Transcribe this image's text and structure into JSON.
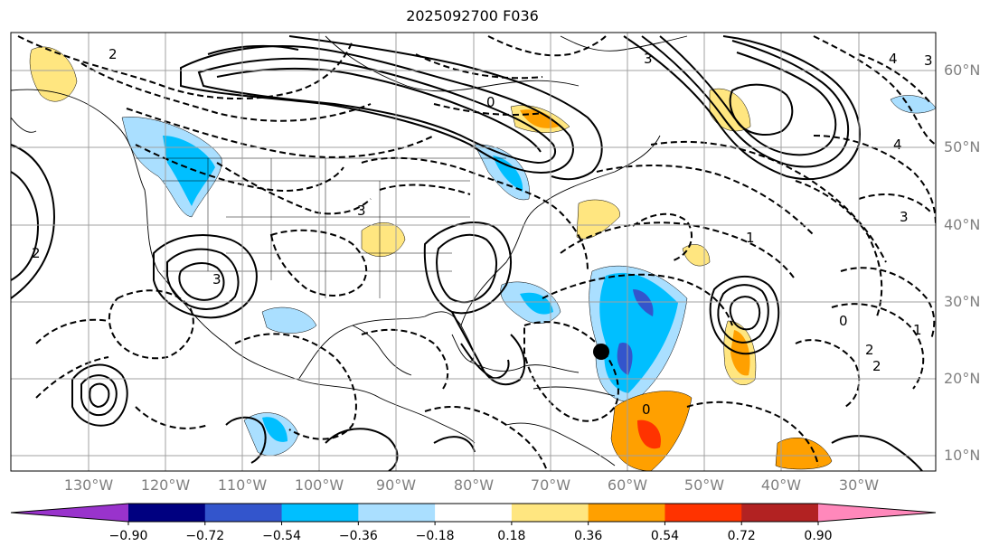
{
  "title": "2025092700 F036",
  "lat_labels": [
    "60°N",
    "50°N",
    "40°N",
    "30°N",
    "20°N",
    "10°N"
  ],
  "lon_labels": [
    "130°W",
    "120°W",
    "110°W",
    "100°W",
    "90°W",
    "80°W",
    "70°W",
    "60°W",
    "50°W",
    "40°W",
    "30°W"
  ],
  "colorbar": {
    "colors": [
      "#9933cc",
      "#000080",
      "#3355cc",
      "#00bfff",
      "#aadfff",
      "#ffffff",
      "#ffe680",
      "#ffa000",
      "#ff3300",
      "#b22222",
      "#ff88bb"
    ],
    "tick_labels": [
      "−0.90",
      "−0.72",
      "−0.54",
      "−0.36",
      "−0.18",
      "0.18",
      "0.36",
      "0.54",
      "0.72",
      "0.90"
    ],
    "tick_values": [
      -0.9,
      -0.72,
      -0.54,
      -0.36,
      -0.18,
      0.18,
      0.36,
      0.54,
      0.72,
      0.9
    ]
  },
  "contour_labels": [
    "3",
    "3",
    "3",
    "3",
    "2",
    "2",
    "2",
    "0",
    "0",
    "0",
    "1",
    "1",
    "4",
    "4",
    "3",
    "2"
  ],
  "marker": {
    "type": "filled-circle",
    "lon": -64.5,
    "lat": 23.5,
    "color": "#000000"
  }
}
